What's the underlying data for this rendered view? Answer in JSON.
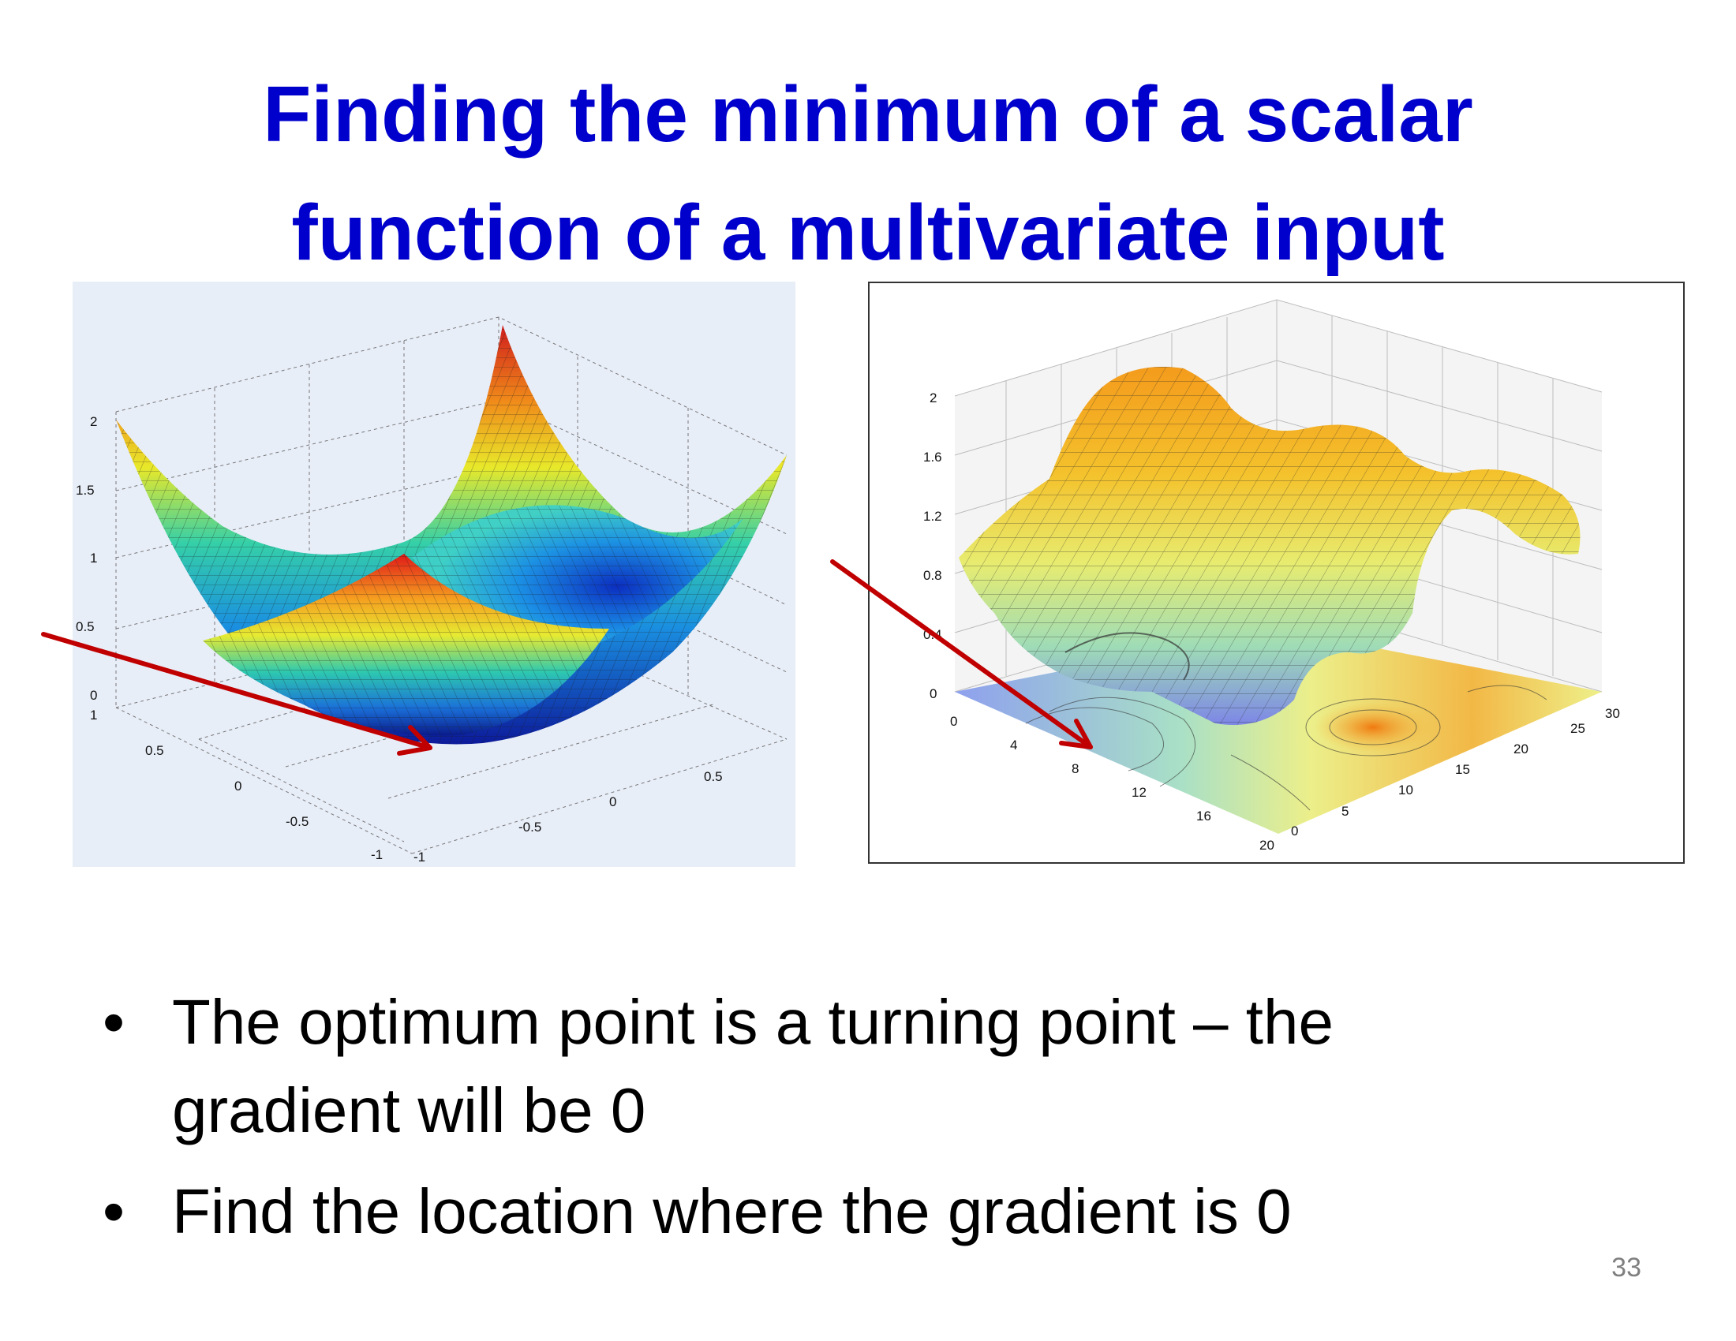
{
  "slide": {
    "title_line1": "Finding the minimum of a scalar",
    "title_line2": "function of a multivariate input",
    "page_number": "33",
    "bullet_symbol": "•",
    "bullets": [
      {
        "line1": "The optimum point is a turning point – the",
        "line2": "gradient will be 0"
      },
      {
        "line1": "Find the location where the gradient is 0"
      }
    ]
  },
  "figures": {
    "left_plot": {
      "description_type": "3d-surface-paraboloid",
      "z_ticks": [
        "2",
        "1.5",
        "1",
        "0.5",
        "0"
      ],
      "y_ticks": [
        "1",
        "0.5",
        "0",
        "-0.5",
        "-1"
      ],
      "x_ticks": [
        "-1",
        "-0.5",
        "0",
        "0.5"
      ],
      "background": "#e8eef8",
      "arrow_color": "#c00000"
    },
    "right_plot": {
      "description_type": "3d-surface-with-contour-projection",
      "z_ticks": [
        "2",
        "1.6",
        "1.2",
        "0.8",
        "0.4",
        "0"
      ],
      "x_ticks": [
        "0",
        "4",
        "8",
        "12",
        "16",
        "20"
      ],
      "y_ticks": [
        "0",
        "5",
        "10",
        "15",
        "20",
        "25",
        "30"
      ],
      "arrow_color": "#b00000"
    }
  }
}
